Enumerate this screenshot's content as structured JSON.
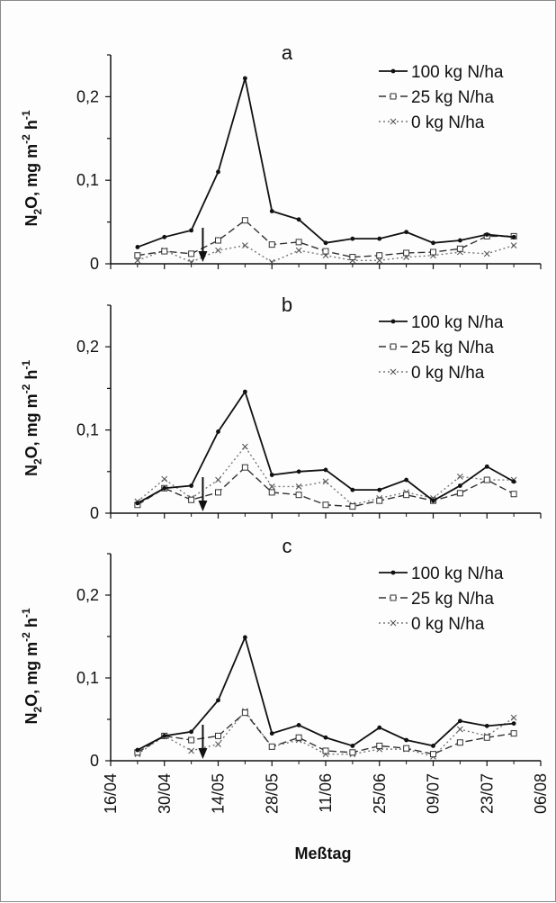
{
  "chart_data": [
    {
      "type": "line",
      "panel_label": "a",
      "xlabel": "",
      "ylabel": "N2O, mg m-2 h-1",
      "ylabel_parts": {
        "n": "N",
        "sub": "2",
        "mid": "O, mg m",
        "exp1": "-2",
        "h": " h",
        "exp2": "-1"
      },
      "ylim": [
        0,
        0.25
      ],
      "yticks": [
        0,
        0.1,
        0.2
      ],
      "ytick_labels": [
        "0",
        "0,1",
        "0,2"
      ],
      "xlim": [
        "2005-04-16",
        "2005-08-06"
      ],
      "xticks": [
        "2005-04-16",
        "2005-04-30",
        "2005-05-14",
        "2005-05-28",
        "2005-06-11",
        "2005-06-25",
        "2005-07-09",
        "2005-07-23",
        "2005-08-06"
      ],
      "xtick_labels": [],
      "arrow_date": "2005-05-10",
      "x": [
        "2005-04-23",
        "2005-04-30",
        "2005-05-07",
        "2005-05-14",
        "2005-05-21",
        "2005-05-28",
        "2005-06-04",
        "2005-06-11",
        "2005-06-18",
        "2005-06-25",
        "2005-07-02",
        "2005-07-09",
        "2005-07-16",
        "2005-07-23",
        "2005-07-30"
      ],
      "series": [
        {
          "name": "100 kg N/ha",
          "marker": "dot",
          "style": "solid",
          "values": [
            0.02,
            0.032,
            0.04,
            0.11,
            0.222,
            0.063,
            0.053,
            0.025,
            0.03,
            0.03,
            0.038,
            0.025,
            0.028,
            0.035,
            0.032
          ]
        },
        {
          "name": "25 kg N/ha",
          "marker": "square",
          "style": "dashed",
          "values": [
            0.01,
            0.015,
            0.012,
            0.028,
            0.052,
            0.023,
            0.026,
            0.015,
            0.008,
            0.01,
            0.013,
            0.014,
            0.018,
            0.033,
            0.033
          ]
        },
        {
          "name": "0 kg N/ha",
          "marker": "x",
          "style": "dotted",
          "values": [
            0.004,
            0.016,
            0.002,
            0.016,
            0.022,
            0.002,
            0.016,
            0.01,
            0.004,
            0.004,
            0.008,
            0.01,
            0.014,
            0.012,
            0.022
          ]
        }
      ]
    },
    {
      "type": "line",
      "panel_label": "b",
      "xlabel": "",
      "ylabel": "N2O, mg m-2 h-1",
      "ylabel_parts": {
        "n": "N",
        "sub": "2",
        "mid": "O, mg m",
        "exp1": "-2",
        "h": " h",
        "exp2": "-1"
      },
      "ylim": [
        0,
        0.25
      ],
      "yticks": [
        0,
        0.1,
        0.2
      ],
      "ytick_labels": [
        "0",
        "0,1",
        "0,2"
      ],
      "xlim": [
        "2005-04-16",
        "2005-08-06"
      ],
      "xticks": [
        "2005-04-16",
        "2005-04-30",
        "2005-05-14",
        "2005-05-28",
        "2005-06-11",
        "2005-06-25",
        "2005-07-09",
        "2005-07-23",
        "2005-08-06"
      ],
      "xtick_labels": [],
      "arrow_date": "2005-05-10",
      "x": [
        "2005-04-23",
        "2005-04-30",
        "2005-05-07",
        "2005-05-14",
        "2005-05-21",
        "2005-05-28",
        "2005-06-04",
        "2005-06-11",
        "2005-06-18",
        "2005-06-25",
        "2005-07-02",
        "2005-07-09",
        "2005-07-16",
        "2005-07-23",
        "2005-07-30"
      ],
      "series": [
        {
          "name": "100 kg N/ha",
          "marker": "dot",
          "style": "solid",
          "values": [
            0.012,
            0.03,
            0.033,
            0.098,
            0.146,
            0.046,
            0.05,
            0.052,
            0.028,
            0.028,
            0.04,
            0.015,
            0.033,
            0.056,
            0.038
          ]
        },
        {
          "name": "25 kg N/ha",
          "marker": "square",
          "style": "dashed",
          "values": [
            0.01,
            0.03,
            0.016,
            0.025,
            0.055,
            0.025,
            0.022,
            0.01,
            0.008,
            0.015,
            0.022,
            0.015,
            0.024,
            0.04,
            0.023
          ]
        },
        {
          "name": "0 kg N/ha",
          "marker": "x",
          "style": "dotted",
          "values": [
            0.014,
            0.041,
            0.018,
            0.04,
            0.08,
            0.032,
            0.032,
            0.038,
            0.01,
            0.018,
            0.025,
            0.018,
            0.044,
            0.04,
            0.04
          ]
        }
      ]
    },
    {
      "type": "line",
      "panel_label": "c",
      "xlabel": "Meßtag",
      "ylabel": "N2O, mg m-2 h-1",
      "ylabel_parts": {
        "n": "N",
        "sub": "2",
        "mid": "O, mg m",
        "exp1": "-2",
        "h": " h",
        "exp2": "-1"
      },
      "ylim": [
        0,
        0.25
      ],
      "yticks": [
        0,
        0.1,
        0.2
      ],
      "ytick_labels": [
        "0",
        "0,1",
        "0,2"
      ],
      "xlim": [
        "2005-04-16",
        "2005-08-06"
      ],
      "xticks": [
        "2005-04-16",
        "2005-04-30",
        "2005-05-14",
        "2005-05-28",
        "2005-06-11",
        "2005-06-25",
        "2005-07-09",
        "2005-07-23",
        "2005-08-06"
      ],
      "xtick_labels": [
        "16/04",
        "30/04",
        "14/05",
        "28/05",
        "11/06",
        "25/06",
        "09/07",
        "23/07",
        "06/08"
      ],
      "arrow_date": "2005-05-10",
      "x": [
        "2005-04-23",
        "2005-04-30",
        "2005-05-07",
        "2005-05-14",
        "2005-05-21",
        "2005-05-28",
        "2005-06-04",
        "2005-06-11",
        "2005-06-18",
        "2005-06-25",
        "2005-07-02",
        "2005-07-09",
        "2005-07-16",
        "2005-07-23",
        "2005-07-30"
      ],
      "series": [
        {
          "name": "100 kg N/ha",
          "marker": "dot",
          "style": "solid",
          "values": [
            0.013,
            0.03,
            0.035,
            0.073,
            0.149,
            0.033,
            0.043,
            0.028,
            0.018,
            0.04,
            0.025,
            0.018,
            0.048,
            0.042,
            0.045
          ]
        },
        {
          "name": "25 kg N/ha",
          "marker": "square",
          "style": "dashed",
          "values": [
            0.01,
            0.03,
            0.025,
            0.03,
            0.058,
            0.017,
            0.028,
            0.012,
            0.01,
            0.018,
            0.015,
            0.008,
            0.022,
            0.028,
            0.033
          ]
        },
        {
          "name": "0 kg N/ha",
          "marker": "x",
          "style": "dotted",
          "values": [
            0.008,
            0.03,
            0.012,
            0.02,
            0.06,
            0.017,
            0.025,
            0.008,
            0.008,
            0.014,
            0.014,
            0.005,
            0.038,
            0.03,
            0.052
          ]
        }
      ]
    }
  ]
}
